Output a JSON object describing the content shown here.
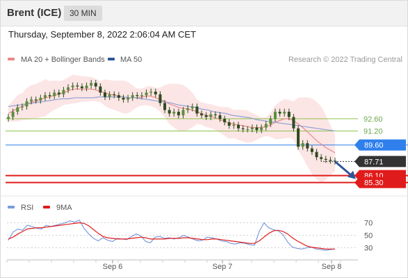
{
  "header": {
    "title": "Brent (ICE)",
    "timeframe": "30 MIN"
  },
  "timestamp": "Thursday, September 8, 2022 2:06:04 AM CET",
  "legend": {
    "ma20_label": "MA 20 + Bollinger Bands",
    "ma50_label": "MA 50",
    "ma20_color": "#e9898a",
    "ma50_color": "#2f5597"
  },
  "watermark": "Research © 2022 Trading Central",
  "rsi_legend": {
    "rsi_label": "RSI",
    "ma9_label": "9MA",
    "rsi_color": "#7b9bdc",
    "ma9_color": "#e01b1b"
  },
  "chart_data": [
    {
      "type": "line",
      "panel": "price",
      "yrange": [
        83.6,
        98.4
      ],
      "x_ticks": [
        "Sep 6",
        "Sep 7",
        "Sep 8"
      ],
      "levels": [
        {
          "value": 92.6,
          "label": "92.60",
          "kind": "resistance",
          "color": "#8bc34a"
        },
        {
          "value": 91.2,
          "label": "91.20",
          "kind": "resistance",
          "color": "#8bc34a"
        },
        {
          "value": 89.6,
          "label": "89.60",
          "kind": "pivot",
          "color": "#2f80ed"
        },
        {
          "value": 87.71,
          "label": "87.71",
          "kind": "last",
          "color": "#333333"
        },
        {
          "value": 86.1,
          "label": "86.10",
          "kind": "support",
          "color": "#e01b1b"
        },
        {
          "value": 85.3,
          "label": "85.30",
          "kind": "support",
          "color": "#e01b1b"
        }
      ],
      "close_series": [
        92.8,
        93.4,
        93.9,
        94.0,
        94.6,
        94.8,
        94.7,
        95.0,
        95.3,
        95.2,
        95.6,
        95.4,
        95.9,
        96.2,
        96.4,
        96.3,
        96.1,
        96.4,
        96.7,
        96.3,
        95.6,
        95.1,
        95.4,
        95.3,
        95.0,
        94.8,
        95.0,
        95.3,
        95.2,
        95.3,
        95.6,
        95.7,
        95.4,
        94.4,
        93.6,
        93.2,
        93.4,
        93.0,
        93.6,
        93.8,
        94.0,
        93.2,
        93.0,
        92.8,
        93.1,
        93.0,
        92.6,
        92.2,
        91.8,
        91.9,
        91.5,
        91.4,
        91.4,
        91.6,
        91.3,
        91.6,
        92.0,
        92.6,
        93.4,
        93.2,
        93.4,
        92.8,
        91.5,
        89.4,
        89.8,
        89.2,
        88.8,
        88.2,
        88.0,
        87.9,
        87.8,
        87.71
      ],
      "series": [
        {
          "name": "MA 20",
          "values": [
            93.2,
            93.5,
            93.8,
            94.0,
            94.3,
            94.5,
            94.6,
            94.8,
            95.0,
            95.1,
            95.3,
            95.4,
            95.6,
            95.8,
            96.0,
            96.0,
            96.0,
            96.0,
            96.0,
            95.9,
            95.7,
            95.6,
            95.4,
            95.3,
            95.2,
            95.1,
            95.0,
            95.0,
            95.0,
            95.1,
            95.2,
            95.2,
            95.0,
            94.8,
            94.6,
            94.3,
            94.1,
            93.9,
            93.8,
            93.7,
            93.6,
            93.4,
            93.2,
            93.0,
            92.9,
            92.7,
            92.5,
            92.3,
            92.1,
            92.0,
            91.9,
            91.8,
            91.7,
            91.6,
            91.6,
            91.6,
            91.7,
            91.9,
            92.2,
            92.4,
            92.6,
            92.6,
            92.4,
            92.0,
            91.6,
            91.1,
            90.6,
            90.1,
            89.7,
            89.3,
            89.0,
            88.7
          ]
        },
        {
          "name": "MA 50",
          "values": [
            94.0,
            94.1,
            94.2,
            94.3,
            94.4,
            94.5,
            94.6,
            94.7,
            94.8,
            94.9,
            94.9,
            95.0,
            95.0,
            95.0,
            95.0,
            95.1,
            95.1,
            95.1,
            95.1,
            95.1,
            95.0,
            95.0,
            94.9,
            94.8,
            94.7,
            94.6,
            94.5,
            94.4,
            94.2,
            94.1,
            94.0,
            93.9,
            93.7,
            93.6,
            93.4,
            93.3,
            93.2,
            93.0,
            92.9,
            92.8,
            92.7,
            92.5,
            92.4,
            92.3,
            92.2,
            92.1,
            92.0,
            91.9,
            91.8,
            91.7,
            91.6,
            91.5,
            91.4,
            91.3,
            91.2
          ]
        }
      ]
    },
    {
      "type": "line",
      "panel": "rsi",
      "yrange": [
        15,
        85
      ],
      "y_ticks": [
        "70",
        "50",
        "30"
      ],
      "series": [
        {
          "name": "RSI",
          "values": [
            42,
            55,
            60,
            58,
            66,
            64,
            61,
            60,
            66,
            64,
            66,
            68,
            70,
            73,
            71,
            74,
            61,
            52,
            45,
            41,
            46,
            42,
            40,
            45,
            44,
            43,
            48,
            52,
            49,
            40,
            38,
            47,
            48,
            45,
            46,
            44,
            46,
            50,
            47,
            44,
            41,
            42,
            47,
            46,
            44,
            41,
            40,
            37,
            36,
            38,
            37,
            35,
            34,
            56,
            70,
            62,
            59,
            57,
            51,
            39,
            31,
            29,
            28,
            30,
            31,
            28,
            27,
            26,
            27,
            28
          ]
        },
        {
          "name": "9MA",
          "values": [
            44,
            47,
            52,
            56,
            60,
            61,
            62,
            62,
            63,
            64,
            65,
            66,
            67,
            68,
            69,
            70,
            69,
            65,
            59,
            53,
            48,
            46,
            45,
            44,
            44,
            44,
            45,
            46,
            47,
            46,
            44,
            44,
            44,
            44,
            45,
            45,
            45,
            46,
            46,
            45,
            44,
            43,
            43,
            44,
            44,
            43,
            42,
            41,
            40,
            39,
            38,
            37,
            37,
            41,
            47,
            53,
            57,
            58,
            56,
            52,
            46,
            41,
            37,
            33,
            31,
            30,
            29,
            28,
            28,
            28
          ]
        }
      ]
    }
  ]
}
